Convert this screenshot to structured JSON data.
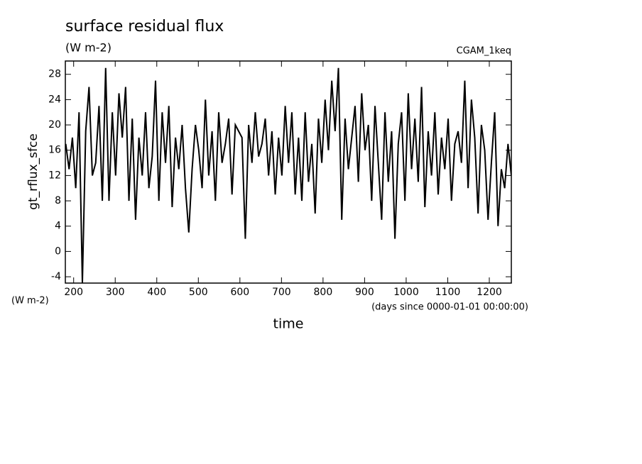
{
  "chart_data": {
    "type": "line",
    "title": "surface residual flux",
    "subtitle": "(W m-2)",
    "annotation": "CGAM_1keq",
    "y_label": "gt_rflux_sfce",
    "y_units": "(W m-2)",
    "x_label": "time",
    "x_units": "(days since 0000-01-01 00:00:00)",
    "x": [
      181,
      189,
      197,
      205,
      213,
      221,
      229,
      237,
      245,
      253,
      261,
      269,
      277,
      285,
      293,
      301,
      309,
      317,
      325,
      333,
      341,
      349,
      357,
      365,
      373,
      381,
      389,
      397,
      405,
      413,
      421,
      429,
      437,
      445,
      453,
      461,
      469,
      477,
      485,
      493,
      501,
      509,
      517,
      525,
      533,
      541,
      549,
      557,
      565,
      573,
      581,
      589,
      597,
      605,
      613,
      621,
      629,
      637,
      645,
      653,
      661,
      669,
      677,
      685,
      693,
      701,
      709,
      717,
      725,
      733,
      741,
      749,
      757,
      765,
      773,
      781,
      789,
      797,
      805,
      813,
      821,
      829,
      837,
      845,
      853,
      861,
      869,
      877,
      885,
      893,
      901,
      909,
      917,
      925,
      933,
      941,
      949,
      957,
      965,
      973,
      981,
      989,
      997,
      1005,
      1013,
      1021,
      1029,
      1037,
      1045,
      1053,
      1061,
      1069,
      1077,
      1085,
      1093,
      1101,
      1109,
      1117,
      1125,
      1133,
      1141,
      1149,
      1157,
      1165,
      1173,
      1181,
      1189,
      1197,
      1205,
      1213,
      1221,
      1229,
      1237,
      1245,
      1253
    ],
    "series": [
      {
        "color": "#000000",
        "values": [
          17,
          13,
          18,
          10,
          22,
          -5,
          19,
          26,
          12,
          14,
          23,
          8,
          29,
          8,
          22,
          12,
          25,
          18,
          26,
          8,
          21,
          5,
          18,
          12,
          22,
          10,
          15,
          27,
          8,
          22,
          14,
          23,
          7,
          18,
          13,
          20,
          10,
          3,
          13,
          20,
          16,
          10,
          24,
          12,
          19,
          8,
          22,
          14,
          17,
          21,
          9,
          20,
          19,
          18,
          2,
          20,
          14,
          22,
          15,
          17,
          21,
          12,
          19,
          9,
          18,
          12,
          23,
          14,
          22,
          9,
          18,
          8,
          22,
          11,
          17,
          6,
          21,
          14,
          24,
          16,
          27,
          19,
          29,
          5,
          21,
          13,
          18,
          23,
          11,
          25,
          16,
          20,
          8,
          23,
          14,
          5,
          22,
          11,
          19,
          2,
          17,
          22,
          8,
          25,
          13,
          21,
          11,
          26,
          7,
          19,
          12,
          22,
          9,
          18,
          13,
          21,
          8,
          17,
          19,
          14,
          27,
          10,
          24,
          18,
          6,
          20,
          16,
          5,
          14,
          22,
          4,
          13,
          10,
          17,
          12
        ]
      }
    ],
    "xlim": [
      180,
      1253
    ],
    "ylim": [
      -5,
      30.1
    ],
    "xticks": [
      200,
      300,
      400,
      500,
      600,
      700,
      800,
      900,
      1000,
      1100,
      1200
    ],
    "yticks": [
      -4,
      0,
      4,
      8,
      12,
      16,
      20,
      24,
      28
    ]
  }
}
